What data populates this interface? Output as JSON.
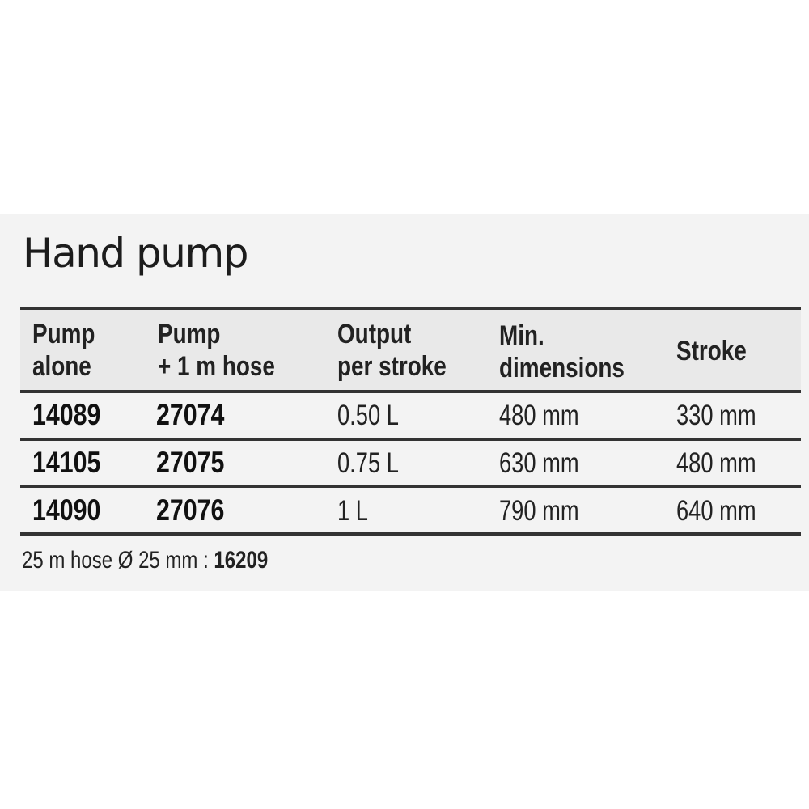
{
  "title": "Hand pump",
  "table": {
    "headers": [
      [
        "Pump",
        "alone"
      ],
      [
        "Pump",
        "+ 1 m hose"
      ],
      [
        "Output",
        "per stroke"
      ],
      [
        "Min.",
        "dimensions"
      ],
      [
        "Stroke"
      ]
    ],
    "rows": [
      [
        "14089",
        "27074",
        "0.50 L",
        "480 mm",
        "330 mm"
      ],
      [
        "14105",
        "27075",
        "0.75 L",
        "630 mm",
        "480 mm"
      ],
      [
        "14090",
        "27076",
        "1 L",
        "790 mm",
        "640 mm"
      ]
    ]
  },
  "footnote": {
    "text": "25 m hose Ø 25 mm : ",
    "code": "16209"
  }
}
